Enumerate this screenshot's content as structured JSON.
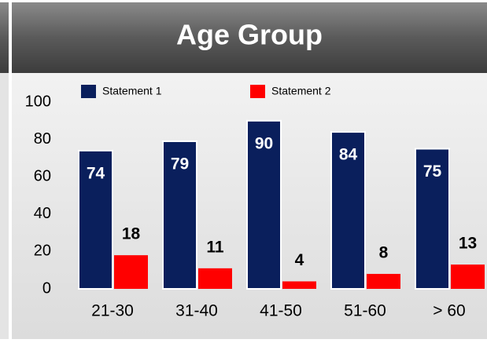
{
  "chart_data": {
    "type": "bar",
    "title": "Age Group",
    "categories": [
      "21-30",
      "31-40",
      "41-50",
      "51-60",
      "> 60"
    ],
    "series": [
      {
        "name": "Statement 1",
        "color": "#0a1f5c",
        "values": [
          74,
          79,
          90,
          84,
          75
        ]
      },
      {
        "name": "Statement 2",
        "color": "#ff0000",
        "values": [
          18,
          11,
          4,
          8,
          13
        ]
      }
    ],
    "ylim": [
      0,
      100
    ],
    "yticks": [
      0,
      20,
      40,
      60,
      80,
      100
    ],
    "grid": false,
    "legend": "top"
  }
}
